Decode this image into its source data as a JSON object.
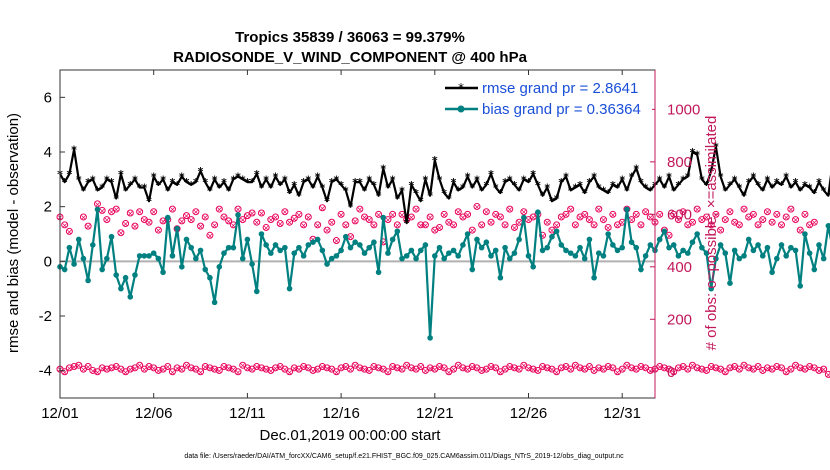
{
  "chart_data": {
    "type": "line",
    "title_line1": "Tropics 35839 / 36063 = 99.379%",
    "title_line2": "RADIOSONDE_V_WIND_COMPONENT @ 400 hPa",
    "xlabel": "Dec.01,2019 00:00:00 start",
    "ylabel_left": "rmse and bias (model - observation)",
    "ylabel_right": "# of obs: o=possible; ×=assimilated",
    "ylim_left": [
      -5,
      7
    ],
    "yticks_left": [
      "-4",
      "-2",
      "0",
      "2",
      "4",
      "6"
    ],
    "ylim_right": [
      -100,
      1150
    ],
    "yticks_right": [
      "0",
      "200",
      "400",
      "600",
      "800",
      "1000"
    ],
    "xlim": [
      0,
      31.75
    ],
    "xticks": [
      {
        "day": 0,
        "label": "12/01"
      },
      {
        "day": 5,
        "label": "12/06"
      },
      {
        "day": 10,
        "label": "12/11"
      },
      {
        "day": 15,
        "label": "12/16"
      },
      {
        "day": 20,
        "label": "12/21"
      },
      {
        "day": 25,
        "label": "12/26"
      },
      {
        "day": 30,
        "label": "12/31"
      }
    ],
    "step_days": 0.25,
    "series": [
      {
        "name": "rmse",
        "legend": "rmse grand pr = 2.8641",
        "color": "#000000",
        "marker": "star",
        "values": [
          3.2,
          2.9,
          3.2,
          4.1,
          3.0,
          2.6,
          2.9,
          3.0,
          2.6,
          2.7,
          3.0,
          2.9,
          2.3,
          3.2,
          2.6,
          2.8,
          3.0,
          2.7,
          2.7,
          2.2,
          3.1,
          2.8,
          3.0,
          2.6,
          2.9,
          2.8,
          3.1,
          2.9,
          2.8,
          2.9,
          3.3,
          2.9,
          2.6,
          3.0,
          2.7,
          2.9,
          2.6,
          3.0,
          3.1,
          3.0,
          2.9,
          2.9,
          3.2,
          2.7,
          3.0,
          2.7,
          3.1,
          2.8,
          3.0,
          2.5,
          2.8,
          2.4,
          2.9,
          3.0,
          2.7,
          3.1,
          2.7,
          2.2,
          2.9,
          3.0,
          2.8,
          2.6,
          2.0,
          2.9,
          2.9,
          2.6,
          3.0,
          2.8,
          2.4,
          3.4,
          2.7,
          3.0,
          2.3,
          2.6,
          1.4,
          2.8,
          2.5,
          2.2,
          3.0,
          2.4,
          3.7,
          3.0,
          2.5,
          2.3,
          2.9,
          2.6,
          2.7,
          3.1,
          2.7,
          3.0,
          2.6,
          2.8,
          3.2,
          2.7,
          2.5,
          2.9,
          3.0,
          2.8,
          2.6,
          3.0,
          2.9,
          3.2,
          2.8,
          2.4,
          2.7,
          2.2,
          2.3,
          2.9,
          3.1,
          2.6,
          2.7,
          2.8,
          2.5,
          2.9,
          3.1,
          2.7,
          2.6,
          2.5,
          2.8,
          2.7,
          3.0,
          2.6,
          3.1,
          3.4,
          2.9,
          2.7,
          2.6,
          2.8,
          3.0,
          2.7,
          3.1,
          2.6,
          2.8,
          3.0,
          3.1,
          4.0,
          3.9,
          3.0,
          2.8,
          3.3,
          4.2,
          3.1,
          2.6,
          2.8,
          3.0,
          2.7,
          2.4,
          2.9,
          3.1,
          2.8,
          2.6,
          3.0,
          2.7,
          2.9,
          2.8,
          3.1,
          2.7,
          2.9,
          2.6,
          2.8,
          2.7,
          2.5,
          2.9,
          2.6,
          2.4,
          3.7
        ]
      },
      {
        "name": "bias",
        "legend": "bias grand pr = 0.36364",
        "color": "#008080",
        "marker": "dot",
        "values": [
          -0.2,
          -0.3,
          0.5,
          -0.1,
          0.8,
          0.1,
          -0.7,
          0.6,
          1.9,
          -0.3,
          0.1,
          0.9,
          -0.5,
          -1.0,
          -0.6,
          -1.3,
          -0.5,
          0.2,
          0.2,
          0.2,
          0.3,
          0.1,
          -0.4,
          1.6,
          0.2,
          1.2,
          -0.2,
          0.8,
          0.5,
          0.1,
          0.4,
          -0.3,
          -0.6,
          -1.5,
          -0.2,
          0.3,
          0.5,
          0.5,
          1.7,
          0.1,
          0.8,
          -0.1,
          -1.1,
          1.0,
          0.6,
          0.3,
          0.6,
          0.4,
          0.5,
          -1.0,
          0.3,
          0.5,
          0.2,
          0.6,
          0.7,
          0.8,
          0.4,
          -0.1,
          0.1,
          0.2,
          0.4,
          0.9,
          0.5,
          0.7,
          0.6,
          0.3,
          0.5,
          0.7,
          -0.4,
          1.6,
          0.3,
          0.8,
          1.1,
          0.1,
          0.2,
          0.4,
          0.1,
          0.4,
          0.6,
          -2.8,
          0.2,
          0.5,
          0.1,
          0.3,
          0.4,
          0.2,
          0.6,
          1.0,
          -0.3,
          0.8,
          0.5,
          0.7,
          0.2,
          0.4,
          -0.6,
          0.5,
          0.1,
          0.3,
          0.8,
          1.6,
          0.2,
          -0.2,
          1.8,
          0.4,
          0.5,
          0.9,
          1.1,
          0.6,
          0.4,
          0.3,
          0.2,
          0.5,
          0.1,
          0.8,
          -0.6,
          0.3,
          0.2,
          1.0,
          0.6,
          0.4,
          0.5,
          1.9,
          0.7,
          0.5,
          -0.3,
          0.2,
          0.6,
          0.4,
          0.8,
          1.1,
          0.5,
          0.6,
          0.2,
          0.4,
          0.3,
          0.7,
          1.0,
          0.5,
          0.3,
          -1.0,
          0.1,
          0.6,
          0.3,
          -0.8,
          0.4,
          0.1,
          0.2,
          0.8,
          0.4,
          0.6,
          0.2,
          0.5,
          -0.4,
          0.1,
          0.6,
          0.2,
          0.5,
          0.4,
          -0.9,
          1.0,
          0.3,
          -0.3,
          0.6,
          0.1,
          1.3,
          0.4,
          0.8,
          -1.7
        ]
      }
    ],
    "obs_counts": {
      "color": "#e8005a",
      "possible": [
        590,
        560,
        535,
        0,
        0,
        590,
        555,
        0,
        640,
        615,
        580,
        610,
        620,
        530,
        565,
        605,
        555,
        610,
        580,
        570,
        610,
        540,
        575,
        580,
        620,
        545,
        575,
        595,
        580,
        610,
        555,
        590,
        520,
        560,
        620,
        590,
        575,
        560,
        620,
        580,
        595,
        605,
        570,
        605,
        550,
        580,
        590,
        565,
        610,
        570,
        585,
        600,
        560,
        590,
        505,
        560,
        625,
        540,
        570,
        500,
        600,
        560,
        515,
        575,
        620,
        590,
        580,
        560,
        600,
        495,
        580,
        600,
        560,
        600,
        580,
        590,
        620,
        560,
        560,
        590,
        540,
        550,
        600,
        570,
        560,
        610,
        590,
        600,
        540,
        630,
        560,
        610,
        570,
        600,
        590,
        560,
        620,
        550,
        570,
        610,
        580,
        590,
        600,
        520,
        570,
        540,
        560,
        590,
        600,
        620,
        560,
        590,
        600,
        580,
        560,
        620,
        580,
        550,
        600,
        560,
        570,
        620,
        580,
        600,
        560,
        610,
        590,
        570,
        600,
        540,
        520,
        600,
        580,
        610,
        560,
        570,
        620,
        580,
        590,
        560,
        600,
        540,
        580,
        610,
        570,
        560,
        620,
        590,
        600,
        560,
        580,
        610,
        570,
        600,
        560,
        590,
        620,
        580,
        540,
        600,
        560,
        570
      ],
      "assimilated_low": [
        10,
        0,
        15,
        20,
        25,
        10,
        20,
        5,
        0,
        15,
        10,
        15,
        20,
        10,
        0,
        10,
        15,
        25,
        10,
        20,
        15,
        5,
        10,
        20,
        0,
        15,
        10,
        25,
        15,
        10,
        0,
        20,
        15,
        10,
        5,
        20,
        15,
        10,
        0,
        25,
        15,
        10,
        20,
        15,
        10,
        5,
        15,
        20,
        10,
        0,
        15,
        10,
        20,
        15,
        5,
        10,
        20,
        15,
        10,
        0,
        15,
        20,
        10,
        25,
        15,
        10,
        5,
        20,
        15,
        10,
        0,
        20,
        15,
        10,
        25,
        15,
        10,
        20,
        5,
        15,
        10,
        20,
        15,
        0,
        10,
        25,
        15,
        10,
        20,
        15,
        5,
        10,
        20,
        15,
        0,
        10,
        20,
        15,
        10,
        25,
        15,
        10,
        5,
        20,
        15,
        10,
        0,
        15,
        20,
        10,
        25,
        15,
        10,
        20,
        5,
        15,
        10,
        20,
        15,
        0,
        10,
        25,
        15,
        10,
        20,
        15,
        5,
        10,
        20,
        15,
        10,
        0,
        15,
        20,
        10,
        25,
        15,
        10,
        5,
        20,
        15,
        10,
        0,
        15,
        20,
        10,
        25,
        15,
        10,
        20,
        5,
        15,
        10,
        20,
        15,
        0,
        10,
        25,
        15,
        10,
        20,
        15,
        5,
        10,
        -10,
        -5
      ]
    },
    "footer": "data file: /Users/raeder/DAI/ATM_forcXX/CAM6_setup/f.e21.FHIST_BGC.f09_025.CAM6assim.011/Diags_NTrS_2019-12/obs_diag_output.nc"
  }
}
